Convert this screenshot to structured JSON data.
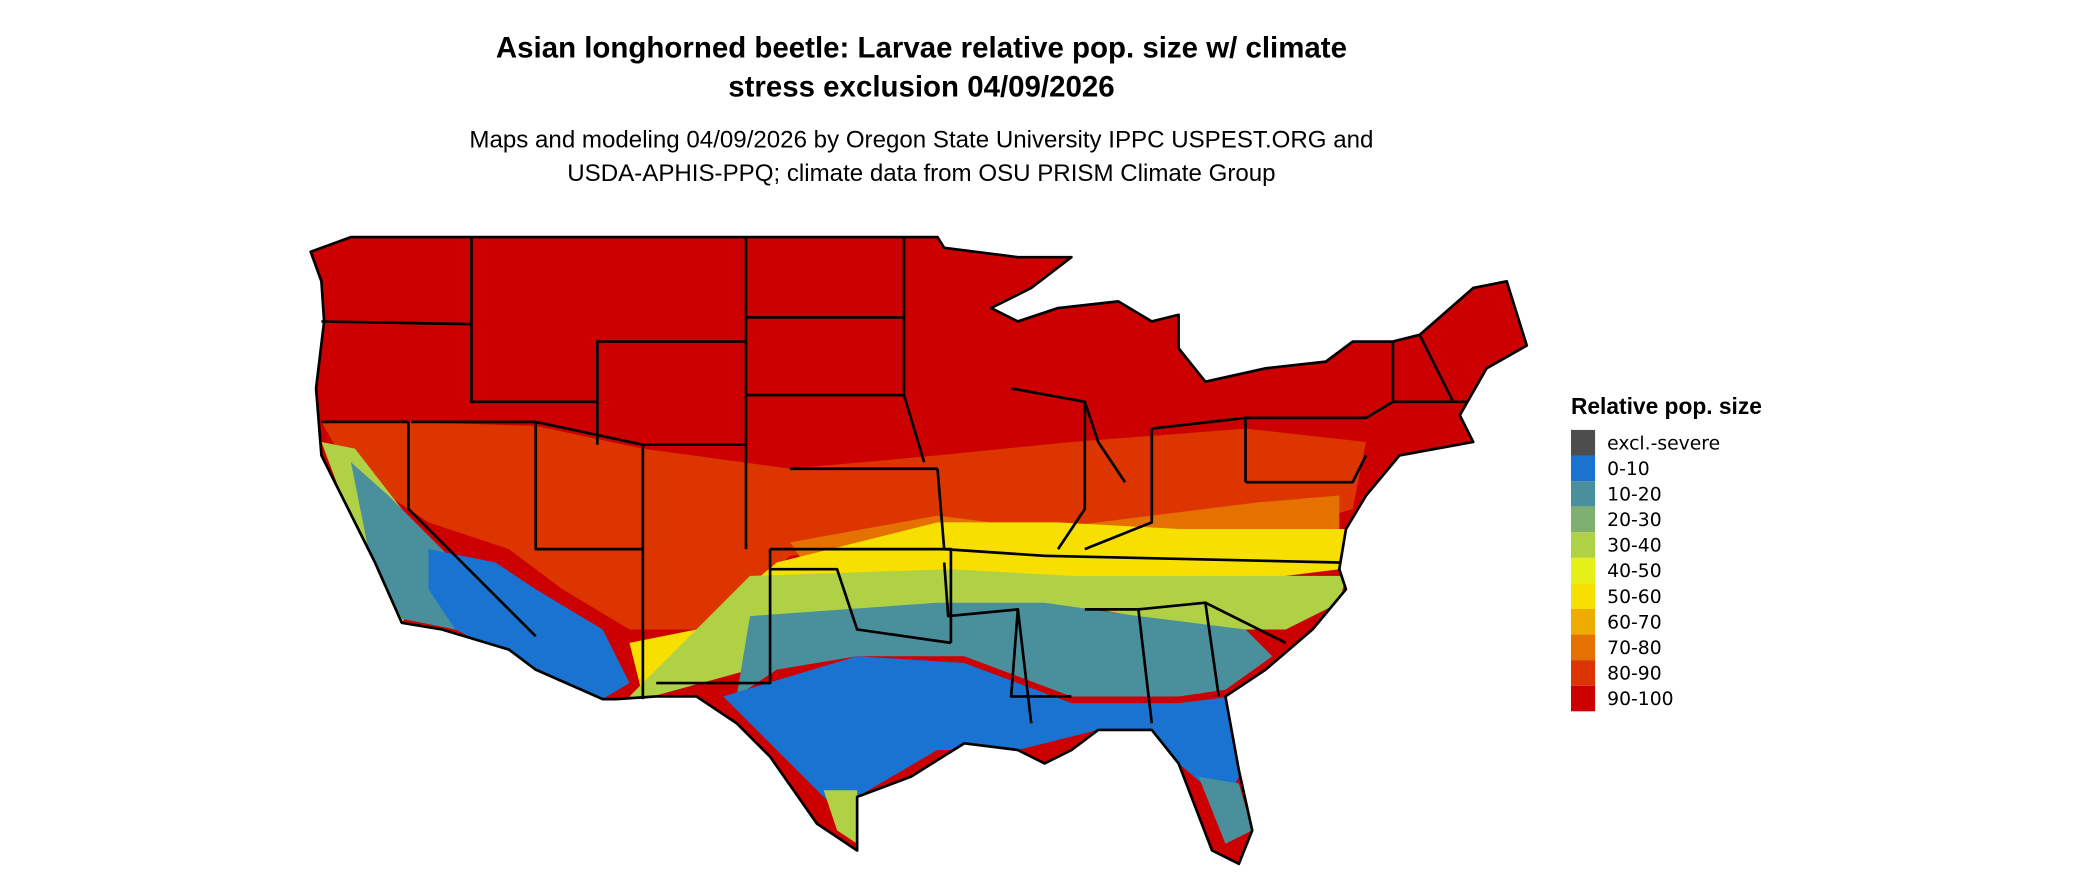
{
  "title": {
    "line1": "Asian longhorned beetle: Larvae relative pop. size w/ climate",
    "line2": "stress exclusion 04/09/2026"
  },
  "subtitle": {
    "line1": "Maps and modeling 04/09/2026 by Oregon State University IPPC USPEST.ORG and",
    "line2": "USDA-APHIS-PPQ; climate data from OSU PRISM Climate Group"
  },
  "legend": {
    "title": "Relative pop. size",
    "items": [
      {
        "label": "excl.-severe",
        "color": "#4d4d4d"
      },
      {
        "label": "0-10",
        "color": "#1a73d0"
      },
      {
        "label": "10-20",
        "color": "#4a8f9c"
      },
      {
        "label": "20-30",
        "color": "#7fb071"
      },
      {
        "label": "30-40",
        "color": "#b0d145"
      },
      {
        "label": "40-50",
        "color": "#e4f016"
      },
      {
        "label": "50-60",
        "color": "#f7e000"
      },
      {
        "label": "60-70",
        "color": "#eeab00"
      },
      {
        "label": "70-80",
        "color": "#e57200"
      },
      {
        "label": "80-90",
        "color": "#dc3500"
      },
      {
        "label": "90-100",
        "color": "#cc0000"
      }
    ]
  },
  "map": {
    "region": "Contiguous United States",
    "dominant_class": "90-100"
  }
}
